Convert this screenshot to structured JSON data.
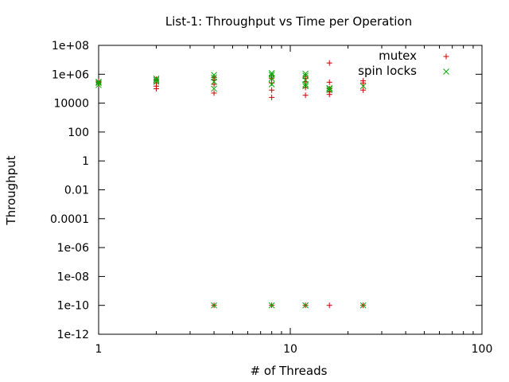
{
  "chart_data": {
    "type": "scatter",
    "title": "List-1: Throughput vs Time per Operation",
    "xlabel": "# of Threads",
    "ylabel": "Throughput",
    "xscale": "log",
    "yscale": "log",
    "xlim": [
      1,
      100
    ],
    "ylim": [
      1e-12,
      100000000.0
    ],
    "grid": false,
    "legend_position": "top-right",
    "x_ticks": [
      {
        "value": 1,
        "label": "1"
      },
      {
        "value": 10,
        "label": "10"
      },
      {
        "value": 100,
        "label": "100"
      }
    ],
    "y_ticks": [
      {
        "value": 100000000.0,
        "label": "1e+08"
      },
      {
        "value": 1000000.0,
        "label": "1e+06"
      },
      {
        "value": 10000.0,
        "label": "10000"
      },
      {
        "value": 100.0,
        "label": "100"
      },
      {
        "value": 1,
        "label": "1"
      },
      {
        "value": 0.01,
        "label": "0.01"
      },
      {
        "value": 0.0001,
        "label": "0.0001"
      },
      {
        "value": 1e-06,
        "label": "1e-06"
      },
      {
        "value": 1e-08,
        "label": "1e-08"
      },
      {
        "value": 1e-10,
        "label": "1e-10"
      },
      {
        "value": 1e-12,
        "label": "1e-12"
      }
    ],
    "series": [
      {
        "name": "mutex",
        "marker": "+",
        "color": "#cc0000",
        "points": [
          [
            1,
            200000
          ],
          [
            1,
            280000
          ],
          [
            1,
            320000
          ],
          [
            2,
            100000
          ],
          [
            2,
            150000
          ],
          [
            2,
            250000
          ],
          [
            2,
            350000
          ],
          [
            2,
            450000
          ],
          [
            4,
            1e-10
          ],
          [
            4,
            50000
          ],
          [
            4,
            200000
          ],
          [
            4,
            400000
          ],
          [
            4,
            600000
          ],
          [
            8,
            1e-10
          ],
          [
            8,
            25000
          ],
          [
            8,
            80000
          ],
          [
            8,
            250000
          ],
          [
            8,
            500000
          ],
          [
            8,
            800000
          ],
          [
            12,
            1e-10
          ],
          [
            12,
            35000
          ],
          [
            12,
            120000
          ],
          [
            12,
            300000
          ],
          [
            12,
            500000
          ],
          [
            12,
            700000
          ],
          [
            16,
            1e-10
          ],
          [
            16,
            40000
          ],
          [
            16,
            60000
          ],
          [
            16,
            100000
          ],
          [
            16,
            280000
          ],
          [
            16,
            6000000
          ],
          [
            24,
            1e-10
          ],
          [
            24,
            80000
          ],
          [
            24,
            250000
          ],
          [
            24,
            350000
          ]
        ]
      },
      {
        "name": "spin locks",
        "marker": "x",
        "color": "#00aa00",
        "points": [
          [
            1,
            180000
          ],
          [
            1,
            250000
          ],
          [
            1,
            300000
          ],
          [
            2,
            300000
          ],
          [
            2,
            400000
          ],
          [
            2,
            500000
          ],
          [
            4,
            1e-10
          ],
          [
            4,
            100000
          ],
          [
            4,
            300000
          ],
          [
            4,
            600000
          ],
          [
            4,
            900000
          ],
          [
            8,
            1e-10
          ],
          [
            8,
            200000
          ],
          [
            8,
            500000
          ],
          [
            8,
            900000
          ],
          [
            8,
            1200000
          ],
          [
            12,
            1e-10
          ],
          [
            12,
            150000
          ],
          [
            12,
            200000
          ],
          [
            12,
            400000
          ],
          [
            12,
            800000
          ],
          [
            12,
            1100000
          ],
          [
            16,
            80000
          ],
          [
            16,
            100000
          ],
          [
            16,
            110000
          ],
          [
            24,
            1e-10
          ],
          [
            24,
            150000
          ]
        ]
      }
    ]
  }
}
